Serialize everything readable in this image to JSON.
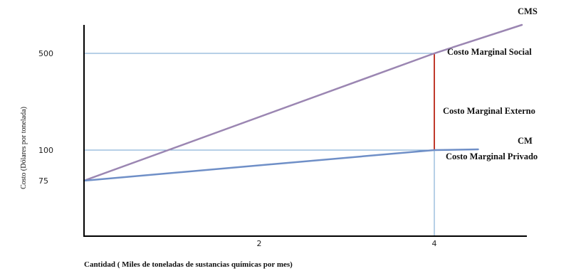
{
  "chart_data": {
    "type": "line",
    "xlabel": "Cantidad  ( Miles de toneladas de sustancias químicas por mes)",
    "ylabel": "Costo (Dólares por tonelada)",
    "xlim": [
      0,
      5
    ],
    "ylim": [
      0,
      620
    ],
    "x_ticks": [
      "2",
      "4"
    ],
    "y_ticks": [
      "500",
      "100",
      "75"
    ],
    "series": [
      {
        "name": "CMS",
        "x": [
          0,
          4,
          5
        ],
        "y": [
          75,
          500,
          600
        ],
        "color": "#9b86b2"
      },
      {
        "name": "CM",
        "x": [
          0,
          4,
          4.5
        ],
        "y": [
          75,
          100,
          103
        ],
        "color": "#6f8fc7"
      }
    ],
    "reference_lines": [
      {
        "y": 500,
        "x_end": 4
      },
      {
        "y": 100,
        "x_end": 4
      },
      {
        "x": 4,
        "y_end": 0
      }
    ],
    "external_cost_segment": {
      "x": 4,
      "y_from": 100,
      "y_to": 500,
      "color": "#c0392b"
    },
    "annotations": {
      "social": "Costo Marginal Social",
      "external": "Costo Marginal Externo",
      "private": "Costo Marginal Privado"
    },
    "colors": {
      "reference": "#6fa0cf",
      "axis": "#000000"
    }
  }
}
